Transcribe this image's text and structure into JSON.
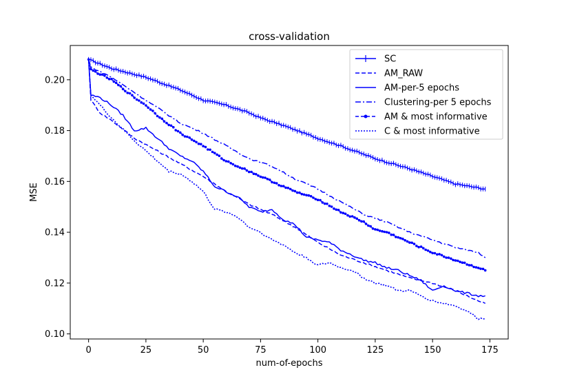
{
  "chart_data": {
    "type": "line",
    "title": "cross-validation",
    "xlabel": "num-of-epochs",
    "ylabel": "MSE",
    "xlim": [
      -8,
      183
    ],
    "ylim": [
      0.098,
      0.2135
    ],
    "xticks": [
      0,
      25,
      50,
      75,
      100,
      125,
      150,
      175
    ],
    "yticks": [
      0.1,
      0.12,
      0.14,
      0.16,
      0.18,
      0.2
    ],
    "grid": false,
    "legend_position": "top-right",
    "line_color": "#0000ff",
    "series": [
      {
        "name": "SC",
        "style": "solid-plus",
        "points": [
          [
            0,
            0.208
          ],
          [
            10,
            0.2045
          ],
          [
            25,
            0.201
          ],
          [
            40,
            0.196
          ],
          [
            50,
            0.192
          ],
          [
            60,
            0.19
          ],
          [
            70,
            0.187
          ],
          [
            75,
            0.185
          ],
          [
            85,
            0.182
          ],
          [
            100,
            0.177
          ],
          [
            110,
            0.174
          ],
          [
            125,
            0.169
          ],
          [
            140,
            0.165
          ],
          [
            150,
            0.162
          ],
          [
            160,
            0.159
          ],
          [
            173,
            0.157
          ]
        ]
      },
      {
        "name": "AM_RAW",
        "style": "dashed",
        "points": [
          [
            0,
            0.208
          ],
          [
            1,
            0.192
          ],
          [
            5,
            0.187
          ],
          [
            10,
            0.184
          ],
          [
            20,
            0.177
          ],
          [
            30,
            0.172
          ],
          [
            40,
            0.167
          ],
          [
            50,
            0.162
          ],
          [
            60,
            0.156
          ],
          [
            70,
            0.151
          ],
          [
            80,
            0.147
          ],
          [
            90,
            0.142
          ],
          [
            100,
            0.136
          ],
          [
            110,
            0.131
          ],
          [
            120,
            0.128
          ],
          [
            130,
            0.125
          ],
          [
            140,
            0.122
          ],
          [
            150,
            0.12
          ],
          [
            160,
            0.117
          ],
          [
            170,
            0.113
          ],
          [
            173,
            0.112
          ]
        ]
      },
      {
        "name": "AM-per-5 epochs",
        "style": "solid",
        "points": [
          [
            0,
            0.208
          ],
          [
            1,
            0.194
          ],
          [
            5,
            0.193
          ],
          [
            10,
            0.19
          ],
          [
            15,
            0.186
          ],
          [
            20,
            0.18
          ],
          [
            25,
            0.181
          ],
          [
            30,
            0.177
          ],
          [
            35,
            0.173
          ],
          [
            40,
            0.17
          ],
          [
            45,
            0.168
          ],
          [
            50,
            0.164
          ],
          [
            55,
            0.158
          ],
          [
            60,
            0.156
          ],
          [
            65,
            0.154
          ],
          [
            70,
            0.15
          ],
          [
            75,
            0.148
          ],
          [
            80,
            0.149
          ],
          [
            85,
            0.145
          ],
          [
            90,
            0.143
          ],
          [
            95,
            0.138
          ],
          [
            100,
            0.137
          ],
          [
            105,
            0.136
          ],
          [
            110,
            0.133
          ],
          [
            115,
            0.131
          ],
          [
            120,
            0.129
          ],
          [
            125,
            0.128
          ],
          [
            130,
            0.126
          ],
          [
            135,
            0.125
          ],
          [
            140,
            0.123
          ],
          [
            145,
            0.121
          ],
          [
            150,
            0.117
          ],
          [
            155,
            0.119
          ],
          [
            160,
            0.117
          ],
          [
            165,
            0.116
          ],
          [
            170,
            0.115
          ],
          [
            173,
            0.115
          ]
        ]
      },
      {
        "name": "Clustering-per 5 epochs",
        "style": "dashdot",
        "points": [
          [
            0,
            0.208
          ],
          [
            1,
            0.205
          ],
          [
            10,
            0.201
          ],
          [
            20,
            0.195
          ],
          [
            30,
            0.189
          ],
          [
            40,
            0.183
          ],
          [
            50,
            0.179
          ],
          [
            60,
            0.174
          ],
          [
            70,
            0.169
          ],
          [
            80,
            0.166
          ],
          [
            90,
            0.161
          ],
          [
            100,
            0.157
          ],
          [
            110,
            0.152
          ],
          [
            120,
            0.147
          ],
          [
            130,
            0.144
          ],
          [
            140,
            0.14
          ],
          [
            150,
            0.137
          ],
          [
            160,
            0.134
          ],
          [
            170,
            0.132
          ],
          [
            173,
            0.13
          ]
        ]
      },
      {
        "name": "AM & most informative",
        "style": "dashed-dots",
        "points": [
          [
            0,
            0.208
          ],
          [
            1,
            0.204
          ],
          [
            10,
            0.2
          ],
          [
            20,
            0.193
          ],
          [
            25,
            0.19
          ],
          [
            30,
            0.186
          ],
          [
            40,
            0.179
          ],
          [
            50,
            0.174
          ],
          [
            60,
            0.168
          ],
          [
            70,
            0.164
          ],
          [
            80,
            0.16
          ],
          [
            90,
            0.156
          ],
          [
            100,
            0.153
          ],
          [
            110,
            0.148
          ],
          [
            120,
            0.144
          ],
          [
            125,
            0.141
          ],
          [
            130,
            0.14
          ],
          [
            140,
            0.136
          ],
          [
            150,
            0.132
          ],
          [
            160,
            0.129
          ],
          [
            170,
            0.126
          ],
          [
            173,
            0.125
          ]
        ]
      },
      {
        "name": "C & most informative",
        "style": "dotted",
        "points": [
          [
            0,
            0.208
          ],
          [
            1,
            0.194
          ],
          [
            5,
            0.19
          ],
          [
            10,
            0.185
          ],
          [
            20,
            0.176
          ],
          [
            25,
            0.172
          ],
          [
            30,
            0.168
          ],
          [
            35,
            0.164
          ],
          [
            40,
            0.163
          ],
          [
            45,
            0.16
          ],
          [
            50,
            0.156
          ],
          [
            55,
            0.149
          ],
          [
            60,
            0.148
          ],
          [
            65,
            0.146
          ],
          [
            70,
            0.142
          ],
          [
            75,
            0.14
          ],
          [
            80,
            0.137
          ],
          [
            85,
            0.135
          ],
          [
            90,
            0.132
          ],
          [
            95,
            0.13
          ],
          [
            100,
            0.127
          ],
          [
            105,
            0.128
          ],
          [
            110,
            0.126
          ],
          [
            115,
            0.125
          ],
          [
            120,
            0.122
          ],
          [
            125,
            0.12
          ],
          [
            130,
            0.119
          ],
          [
            135,
            0.117
          ],
          [
            140,
            0.117
          ],
          [
            145,
            0.115
          ],
          [
            150,
            0.113
          ],
          [
            155,
            0.112
          ],
          [
            160,
            0.111
          ],
          [
            165,
            0.109
          ],
          [
            170,
            0.106
          ],
          [
            173,
            0.106
          ]
        ]
      }
    ]
  }
}
